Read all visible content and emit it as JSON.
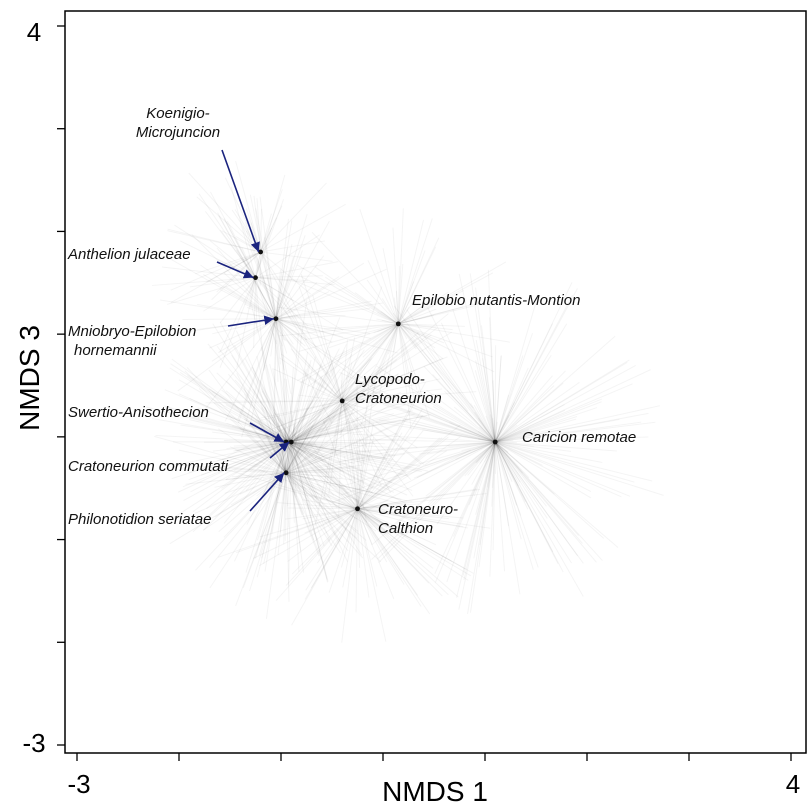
{
  "chart_data": {
    "type": "scatter",
    "title": "",
    "xlabel": "NMDS 1",
    "ylabel": "NMDS 3",
    "xlim": [
      -3,
      4
    ],
    "ylim": [
      -3,
      4
    ],
    "x_tick_labels": [
      "-3",
      "4"
    ],
    "y_tick_labels": [
      "4",
      "-3"
    ],
    "grid": false,
    "legend": "none",
    "marks": "spider diagram: site scores joined to group centroids",
    "colors": {
      "spokes": "#000000",
      "leaders": "#1a237e"
    },
    "series": [
      {
        "name": "Koenigio-\nMicrojuncion",
        "centroid": [
          -1.2,
          1.8
        ]
      },
      {
        "name": "Anthelion julaceae",
        "centroid": [
          -1.25,
          1.55
        ]
      },
      {
        "name": "Mniobryo-Epilobion\nhornemannii",
        "centroid": [
          -1.05,
          1.15
        ]
      },
      {
        "name": "Epilobio nutantis-Montion",
        "centroid": [
          0.15,
          1.1
        ]
      },
      {
        "name": "Lycopodo-\nCratoneurion",
        "centroid": [
          -0.4,
          0.35
        ]
      },
      {
        "name": "Swertio-Anisothecion",
        "centroid": [
          -0.95,
          -0.05
        ]
      },
      {
        "name": "Cratoneurion commutati",
        "centroid": [
          -0.9,
          -0.05
        ]
      },
      {
        "name": "Philonotidion seriatae",
        "centroid": [
          -0.95,
          -0.35
        ]
      },
      {
        "name": "Caricion remotae",
        "centroid": [
          1.1,
          -0.05
        ]
      },
      {
        "name": "Cratoneuro-\nCalthion",
        "centroid": [
          -0.25,
          -0.7
        ]
      }
    ]
  }
}
